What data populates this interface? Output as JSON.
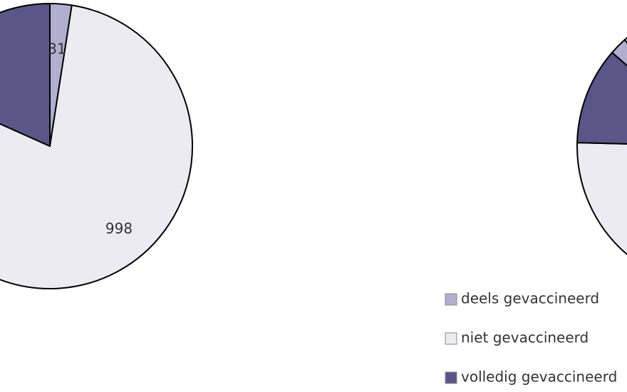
{
  "chart_data": [
    {
      "type": "pie",
      "categories": [
        "deels gevaccineerd",
        "niet gevaccineerd",
        "volledig gevaccineerd"
      ],
      "values": [
        31,
        998,
        231
      ],
      "value_labels": [
        "31",
        "998",
        ""
      ],
      "colors": [
        "#b2aed0",
        "#ecebf3",
        "#5c5587"
      ],
      "legend": "none"
    },
    {
      "type": "pie",
      "categories": [
        "deels gevaccineerd",
        "niet gevaccineerd",
        "volledig gevaccineerd"
      ],
      "values": [
        2,
        87,
        11
      ],
      "value_labels": [
        "",
        "",
        ""
      ],
      "colors": [
        "#b2aed0",
        "#ecebf3",
        "#5c5587"
      ],
      "legend": "bottom-right"
    }
  ],
  "legend": {
    "items": [
      {
        "label": "deels gevaccineerd",
        "color": "#b2aed0"
      },
      {
        "label": "niet gevaccineerd",
        "color": "#ecebf3"
      },
      {
        "label": "volledig gevaccineerd",
        "color": "#5c5587"
      }
    ]
  }
}
